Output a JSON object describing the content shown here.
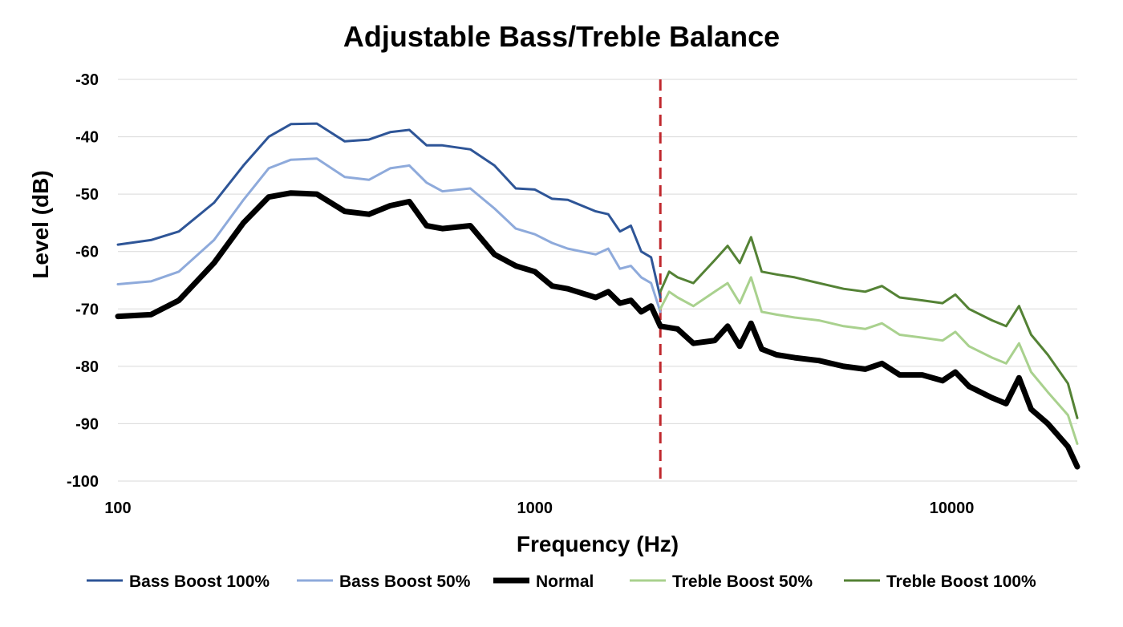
{
  "chart_data": {
    "type": "line",
    "title": "Adjustable Bass/Treble Balance",
    "xlabel": "Frequency (Hz)",
    "ylabel": "Level (dB)",
    "x_scale": "log",
    "xlim": [
      100,
      20000
    ],
    "ylim": [
      -100,
      -30
    ],
    "x_ticks": [
      100,
      1000,
      10000
    ],
    "x_tick_labels": [
      "100",
      "1000",
      "10000"
    ],
    "y_ticks": [
      -30,
      -40,
      -50,
      -60,
      -70,
      -80,
      -90,
      -100
    ],
    "y_tick_labels": [
      "-30",
      "-40",
      "-50",
      "-60",
      "-70",
      "-80",
      "-90",
      "-100"
    ],
    "grid": "horizontal",
    "legend_position": "bottom",
    "crossover_marker": {
      "x": 2000,
      "style": "dashed",
      "color": "#c0282d"
    },
    "series": [
      {
        "name": "Bass Boost 100%",
        "color": "#2e5597",
        "width": 3,
        "x": [
          100,
          120,
          140,
          170,
          200,
          230,
          260,
          300,
          350,
          400,
          450,
          500,
          550,
          600,
          700,
          800,
          900,
          1000,
          1100,
          1200,
          1400,
          1500,
          1600,
          1700,
          1800,
          1900,
          2000
        ],
        "values": [
          -58.8,
          -58.0,
          -56.5,
          -51.5,
          -45.0,
          -40.0,
          -37.8,
          -37.7,
          -40.8,
          -40.5,
          -39.2,
          -38.8,
          -41.5,
          -41.5,
          -42.2,
          -45.0,
          -49.0,
          -49.2,
          -50.8,
          -51.0,
          -53.0,
          -53.5,
          -56.5,
          -55.5,
          -60.0,
          -61.0,
          -68.0
        ]
      },
      {
        "name": "Bass Boost 50%",
        "color": "#8eaadb",
        "width": 3,
        "x": [
          100,
          120,
          140,
          170,
          200,
          230,
          260,
          300,
          350,
          400,
          450,
          500,
          550,
          600,
          700,
          800,
          900,
          1000,
          1100,
          1200,
          1400,
          1500,
          1600,
          1700,
          1800,
          1900,
          2000
        ],
        "values": [
          -65.7,
          -65.2,
          -63.5,
          -58.0,
          -51.0,
          -45.5,
          -44.0,
          -43.8,
          -47.0,
          -47.5,
          -45.5,
          -45.0,
          -48.0,
          -49.5,
          -49.0,
          -52.5,
          -56.0,
          -57.0,
          -58.5,
          -59.5,
          -60.5,
          -59.5,
          -63.0,
          -62.5,
          -64.5,
          -65.5,
          -70.5
        ]
      },
      {
        "name": "Normal",
        "color": "#000000",
        "width": 7,
        "x": [
          100,
          120,
          140,
          170,
          200,
          230,
          260,
          300,
          350,
          400,
          450,
          500,
          550,
          600,
          700,
          800,
          900,
          1000,
          1100,
          1200,
          1400,
          1500,
          1600,
          1700,
          1800,
          1900,
          2000,
          2200,
          2400,
          2700,
          2900,
          3100,
          3300,
          3500,
          3800,
          4200,
          4800,
          5500,
          6200,
          6800,
          7500,
          8500,
          9500,
          10200,
          11000,
          12500,
          13500,
          14500,
          15500,
          17000,
          19000,
          20000
        ],
        "values": [
          -71.3,
          -71.0,
          -68.5,
          -62.0,
          -55.0,
          -50.5,
          -49.8,
          -50.0,
          -53.0,
          -53.5,
          -52.0,
          -51.3,
          -55.5,
          -56.0,
          -55.5,
          -60.5,
          -62.5,
          -63.5,
          -66.0,
          -66.5,
          -68.0,
          -67.0,
          -69.0,
          -68.5,
          -70.5,
          -69.5,
          -73.0,
          -73.5,
          -76.0,
          -75.5,
          -73.0,
          -76.5,
          -72.5,
          -77.0,
          -78.0,
          -78.5,
          -79.0,
          -80.0,
          -80.5,
          -79.5,
          -81.5,
          -81.5,
          -82.5,
          -81.0,
          -83.5,
          -85.5,
          -86.5,
          -82.0,
          -87.5,
          -90.0,
          -94.0,
          -97.5
        ]
      },
      {
        "name": "Treble Boost 50%",
        "color": "#a9d18e",
        "width": 3,
        "x": [
          2000,
          2100,
          2200,
          2400,
          2700,
          2900,
          3100,
          3300,
          3500,
          3800,
          4200,
          4800,
          5500,
          6200,
          6800,
          7500,
          8500,
          9500,
          10200,
          11000,
          12500,
          13500,
          14500,
          15500,
          17000,
          19000,
          20000
        ],
        "values": [
          -70.0,
          -67.0,
          -68.0,
          -69.5,
          -67.0,
          -65.5,
          -69.0,
          -64.5,
          -70.5,
          -71.0,
          -71.5,
          -72.0,
          -73.0,
          -73.5,
          -72.5,
          -74.5,
          -75.0,
          -75.5,
          -74.0,
          -76.5,
          -78.5,
          -79.5,
          -76.0,
          -81.0,
          -84.5,
          -88.5,
          -93.5
        ]
      },
      {
        "name": "Treble Boost 100%",
        "color": "#548235",
        "width": 3,
        "x": [
          2000,
          2100,
          2200,
          2400,
          2700,
          2900,
          3100,
          3300,
          3500,
          3800,
          4200,
          4800,
          5500,
          6200,
          6800,
          7500,
          8500,
          9500,
          10200,
          11000,
          12500,
          13500,
          14500,
          15500,
          17000,
          19000,
          20000
        ],
        "values": [
          -67.0,
          -63.5,
          -64.5,
          -65.5,
          -61.5,
          -59.0,
          -62.0,
          -57.5,
          -63.5,
          -64.0,
          -64.5,
          -65.5,
          -66.5,
          -67.0,
          -66.0,
          -68.0,
          -68.5,
          -69.0,
          -67.5,
          -70.0,
          -72.0,
          -73.0,
          -69.5,
          -74.5,
          -78.0,
          -83.0,
          -89.0
        ]
      }
    ]
  }
}
